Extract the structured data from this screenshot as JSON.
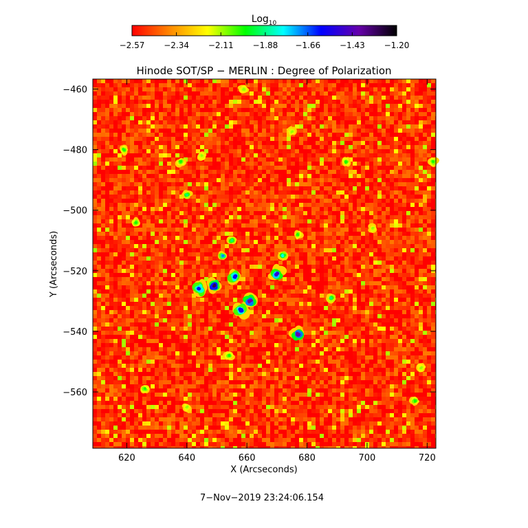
{
  "chart_data": {
    "type": "heatmap",
    "title": "Hinode SOT/SP − MERLIN : Degree of Polarization",
    "xlabel": "X (Arcseconds)",
    "ylabel": "Y (Arcseconds)",
    "xlim": [
      608.7,
      722.9
    ],
    "ylim": [
      -578.6,
      -456.7
    ],
    "x_ticks": [
      620,
      640,
      660,
      680,
      700,
      720
    ],
    "x_tick_labels": [
      "620",
      "640",
      "660",
      "680",
      "700",
      "720"
    ],
    "y_ticks": [
      -460,
      -480,
      -500,
      -520,
      -540,
      -560
    ],
    "y_tick_labels": [
      "−460",
      "−480",
      "−500",
      "−520",
      "−540",
      "−560"
    ],
    "colorbar": {
      "label_main": "Log",
      "label_sub": "10",
      "range": [
        -2.57,
        -1.2
      ],
      "ticks": [
        -2.57,
        -2.34,
        -2.11,
        -1.88,
        -1.66,
        -1.43,
        -1.2
      ],
      "tick_labels": [
        "−2.57",
        "−2.34",
        "−2.11",
        "−1.88",
        "−1.66",
        "−1.43",
        "−1.20"
      ],
      "colormap": [
        "#ff0000",
        "#ff8800",
        "#ffff00",
        "#00ff00",
        "#00ffff",
        "#0000ff",
        "#6600aa",
        "#000000"
      ]
    },
    "background_level": -2.5,
    "features": [
      {
        "x": 649,
        "y": -525,
        "level": -1.3
      },
      {
        "x": 652,
        "y": -515,
        "level": -1.7
      },
      {
        "x": 644,
        "y": -526,
        "level": -1.6
      },
      {
        "x": 656,
        "y": -522,
        "level": -1.6
      },
      {
        "x": 661,
        "y": -530,
        "level": -1.4
      },
      {
        "x": 658,
        "y": -533,
        "level": -1.6
      },
      {
        "x": 670,
        "y": -521,
        "level": -1.5
      },
      {
        "x": 672,
        "y": -515,
        "level": -1.8
      },
      {
        "x": 677,
        "y": -541,
        "level": -1.4
      },
      {
        "x": 655,
        "y": -510,
        "level": -1.9
      },
      {
        "x": 640,
        "y": -495,
        "level": -1.9
      },
      {
        "x": 638,
        "y": -484,
        "level": -2.0
      },
      {
        "x": 645,
        "y": -482,
        "level": -2.1
      },
      {
        "x": 623,
        "y": -504,
        "level": -2.0
      },
      {
        "x": 619,
        "y": -480,
        "level": -2.0
      },
      {
        "x": 675,
        "y": -474,
        "level": -2.1
      },
      {
        "x": 693,
        "y": -484,
        "level": -2.0
      },
      {
        "x": 677,
        "y": -508,
        "level": -2.0
      },
      {
        "x": 688,
        "y": -529,
        "level": -1.9
      },
      {
        "x": 654,
        "y": -548,
        "level": -2.0
      },
      {
        "x": 626,
        "y": -559,
        "level": -2.0
      },
      {
        "x": 716,
        "y": -563,
        "level": -2.0
      },
      {
        "x": 718,
        "y": -552,
        "level": -2.1
      },
      {
        "x": 722,
        "y": -484,
        "level": -2.0
      },
      {
        "x": 659,
        "y": -460,
        "level": -2.1
      },
      {
        "x": 702,
        "y": -506,
        "level": -2.1
      },
      {
        "x": 640,
        "y": -565,
        "level": -2.1
      }
    ]
  },
  "footer": {
    "timestamp": "7−Nov−2019 23:24:06.154"
  }
}
